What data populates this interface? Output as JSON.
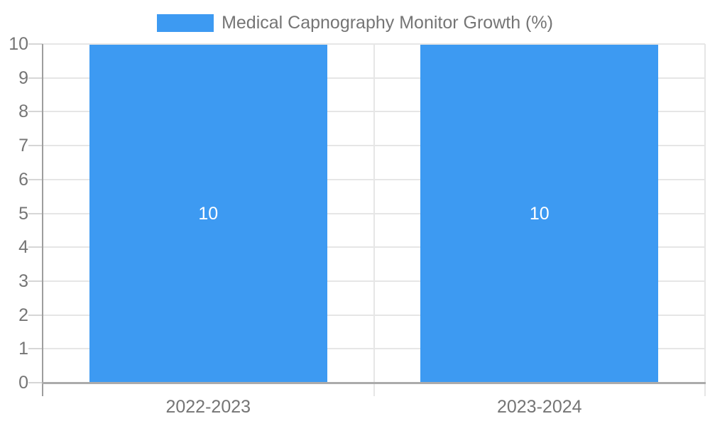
{
  "legend": {
    "label": "Medical Capnography Monitor Growth (%)",
    "swatch_color": "#3d9af2"
  },
  "chart_data": {
    "type": "bar",
    "title": "Medical Capnography Monitor Growth (%)",
    "categories": [
      "2022-2023",
      "2023-2024"
    ],
    "values": [
      10,
      10
    ],
    "bar_value_labels": [
      "10",
      "10"
    ],
    "xlabel": "",
    "ylabel": "",
    "ylim": [
      0,
      10
    ],
    "yticks": [
      0,
      1,
      2,
      3,
      4,
      5,
      6,
      7,
      8,
      9,
      10
    ],
    "grid": true,
    "legend_position": "top-center",
    "colors": {
      "bar": "#3d9af2",
      "bar_label": "#ffffff",
      "gridline": "#e6e6e6",
      "y_axis_line": "#9e9e9e",
      "x_axis_line": "#ababab",
      "tick_mark": "#d6d6d6",
      "tick_label": "#757575",
      "background": "#ffffff"
    }
  }
}
